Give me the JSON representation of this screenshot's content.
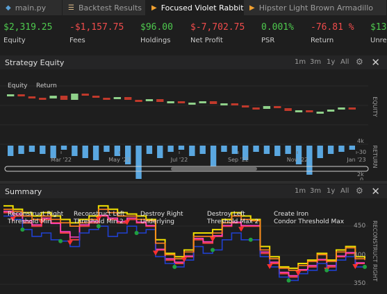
{
  "tabs": [
    {
      "label": "main.py",
      "icon": "python-icon",
      "icon_color": "#5a9fd4"
    },
    {
      "label": "Backtest Results",
      "icon": "list-icon",
      "icon_color": "#e2c08d"
    },
    {
      "label": "Focused Violet Rabbit",
      "icon": "play-icon",
      "icon_color": "#f0a030",
      "active": true
    },
    {
      "label": "Hipster Light Brown Armadillo",
      "icon": "play-icon",
      "icon_color": "#f0a030"
    }
  ],
  "stats": [
    {
      "value": "$2,319.25",
      "label": "Equity",
      "color": "#4ec94e"
    },
    {
      "value": "-$1,157.75",
      "label": "Fees",
      "color": "#f14c4c"
    },
    {
      "value": "$96.00",
      "label": "Holdings",
      "color": "#4ec94e"
    },
    {
      "value": "$-7,702.75",
      "label": "Net Profit",
      "color": "#f14c4c"
    },
    {
      "value": "0.001%",
      "label": "PSR",
      "color": "#4ec94e"
    },
    {
      "value": "-76.81 %",
      "label": "Return",
      "color": "#f14c4c"
    },
    {
      "value": "$13",
      "label": "Unre",
      "color": "#4ec94e"
    }
  ],
  "equity_panel": {
    "title": "Strategy Equity",
    "ranges": [
      "1m",
      "3m",
      "1y",
      "All"
    ],
    "legend": [
      "Equity",
      "Return"
    ],
    "y_ticks_equity": [
      "4k",
      "2k"
    ],
    "y_ticks_return": [
      "0",
      "-30"
    ],
    "axis_equity": "EQUITY",
    "axis_return": "RETURN",
    "x_ticks": [
      "Mar '22",
      "May '22",
      "Jul '22",
      "Sep '22",
      "Nov '22",
      "Jan '23"
    ]
  },
  "summary_panel": {
    "title": "Summary",
    "ranges": [
      "1m",
      "3m",
      "1y",
      "All"
    ],
    "legend": [
      "Reconstruct Right Threshold Min",
      "Reconstruct Left Threshold Min 2",
      "Destroy Right Underlying",
      "Destroy Left Threshold Max 2",
      "Create Iron Condor Threshold Max"
    ],
    "y_ticks": [
      "450",
      "400",
      "350"
    ],
    "axis_label": "RECONSTRUCT RIGHT"
  },
  "chart_data": [
    {
      "type": "bar",
      "title": "Strategy Equity",
      "series": [
        {
          "name": "Equity",
          "values": [
            3300,
            3150,
            3050,
            3000,
            3200,
            2900,
            3350,
            3200,
            3050,
            2950,
            3100,
            2900,
            2850,
            2950,
            2750,
            2800,
            2650,
            2700,
            2800,
            2600,
            2650,
            2500,
            2350,
            2250,
            2450,
            2300,
            2100,
            2150,
            2000,
            2050,
            2200,
            2350,
            2300
          ]
        },
        {
          "name": "Return",
          "values": [
            -5,
            -4,
            -3,
            -4,
            -6,
            -2,
            -5,
            -6,
            -7,
            -3,
            -5,
            -9,
            -16,
            -4,
            -6,
            -3,
            -2,
            -5,
            -4,
            -10,
            -3,
            -4,
            -7,
            -3,
            -4,
            -5,
            -4,
            -9,
            -14,
            -6,
            -4,
            -3,
            -2
          ]
        }
      ],
      "ylim_equity": [
        0,
        4000
      ],
      "ylim_return": [
        -30,
        0
      ]
    },
    {
      "type": "line",
      "title": "Summary",
      "series": [
        {
          "name": "Reconstruct Right Threshold Min",
          "values": [
            460,
            455,
            445,
            440,
            450,
            445,
            430,
            420,
            440,
            445,
            455,
            450,
            445,
            450,
            445,
            440,
            405,
            390,
            385,
            395,
            420,
            415,
            425,
            440,
            445,
            440,
            440,
            400,
            385,
            370,
            365,
            375,
            380,
            390,
            380,
            395,
            400,
            385,
            385
          ]
        },
        {
          "name": "Reconstruct Left Threshold Min 2",
          "values": [
            462,
            458,
            448,
            442,
            452,
            444,
            432,
            424,
            442,
            447,
            456,
            452,
            447,
            452,
            446,
            441,
            406,
            392,
            387,
            396,
            422,
            417,
            426,
            441,
            446,
            441,
            441,
            402,
            387,
            372,
            367,
            376,
            382,
            391,
            382,
            396,
            401,
            386,
            386
          ]
        },
        {
          "name": "Destroy Right Underlying",
          "values": [
            455,
            450,
            435,
            425,
            430,
            420,
            418,
            410,
            430,
            435,
            440,
            425,
            430,
            440,
            430,
            435,
            395,
            385,
            380,
            390,
            410,
            400,
            405,
            420,
            430,
            420,
            420,
            395,
            380,
            365,
            360,
            370,
            375,
            385,
            375,
            390,
            395,
            380,
            380
          ]
        },
        {
          "name": "Destroy Left Threshold Max 2",
          "values": [
            470,
            465,
            460,
            455,
            460,
            455,
            450,
            445,
            450,
            455,
            470,
            465,
            460,
            458,
            455,
            450,
            420,
            400,
            395,
            405,
            430,
            430,
            435,
            450,
            460,
            455,
            450,
            410,
            395,
            380,
            378,
            385,
            390,
            400,
            390,
            405,
            410,
            395,
            392
          ]
        },
        {
          "name": "Create Iron Condor Threshold Max",
          "values": [
            465,
            462,
            455,
            450,
            455,
            450,
            445,
            440,
            445,
            450,
            465,
            460,
            455,
            455,
            450,
            448,
            415,
            398,
            392,
            402,
            425,
            425,
            430,
            445,
            455,
            450,
            448,
            405,
            392,
            378,
            375,
            382,
            388,
            398,
            388,
            402,
            408,
            392,
            390
          ]
        }
      ],
      "ylim": [
        340,
        475
      ]
    }
  ]
}
